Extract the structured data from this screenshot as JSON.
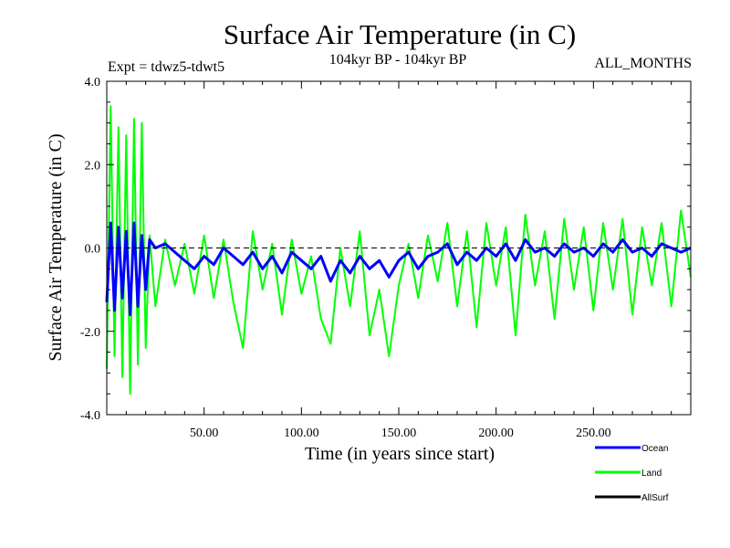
{
  "chart_data": {
    "type": "line",
    "title": "Surface Air Temperature (in C)",
    "subtitle": "104kyr BP - 104kyr BP",
    "left_note": "Expt = tdwz5-tdwt5",
    "right_note": "ALL_MONTHS",
    "xlabel": "Time (in years since start)",
    "ylabel": "Surface Air Temperature (in C)",
    "xlim": [
      0,
      300
    ],
    "ylim": [
      -4.0,
      4.0
    ],
    "x_ticks": [
      50,
      100,
      150,
      200,
      250
    ],
    "x_tick_labels": [
      "50.00",
      "100.00",
      "150.00",
      "200.00",
      "250.00"
    ],
    "y_ticks": [
      -4,
      -2,
      0,
      2,
      4
    ],
    "y_tick_labels": [
      "-4.0",
      "-2.0",
      "0.0",
      "2.0",
      "4.0"
    ],
    "zero_line": true,
    "grid": false,
    "legend_position": "bottom-right",
    "series": [
      {
        "name": "Land",
        "color": "#00ff00",
        "x": [
          0,
          2,
          4,
          6,
          8,
          10,
          12,
          14,
          16,
          18,
          20,
          22,
          25,
          30,
          35,
          40,
          45,
          50,
          55,
          60,
          65,
          70,
          75,
          80,
          85,
          90,
          95,
          100,
          105,
          110,
          115,
          120,
          125,
          130,
          135,
          140,
          145,
          150,
          155,
          160,
          165,
          170,
          175,
          180,
          185,
          190,
          195,
          200,
          205,
          210,
          215,
          220,
          225,
          230,
          235,
          240,
          245,
          250,
          255,
          260,
          265,
          270,
          275,
          280,
          285,
          290,
          295,
          300
        ],
        "values": [
          -2.9,
          3.4,
          -2.6,
          2.9,
          -3.1,
          2.7,
          -3.5,
          3.1,
          -2.8,
          3.0,
          -2.4,
          0.3,
          -1.4,
          0.2,
          -0.9,
          0.1,
          -1.1,
          0.3,
          -1.2,
          0.2,
          -1.3,
          -2.4,
          0.4,
          -1.0,
          0.1,
          -1.6,
          0.2,
          -1.1,
          -0.2,
          -1.7,
          -2.3,
          0.0,
          -1.4,
          0.4,
          -2.1,
          -1.0,
          -2.6,
          -0.9,
          0.1,
          -1.2,
          0.3,
          -0.8,
          0.6,
          -1.4,
          0.4,
          -1.9,
          0.6,
          -0.9,
          0.5,
          -2.1,
          0.8,
          -0.9,
          0.4,
          -1.7,
          0.7,
          -1.0,
          0.5,
          -1.5,
          0.6,
          -1.0,
          0.7,
          -1.6,
          0.5,
          -0.9,
          0.6,
          -1.4,
          0.9,
          -0.7
        ]
      },
      {
        "name": "Ocean",
        "color": "#0000ff",
        "x": [
          0,
          2,
          4,
          6,
          8,
          10,
          12,
          14,
          16,
          18,
          20,
          22,
          25,
          30,
          35,
          40,
          45,
          50,
          55,
          60,
          65,
          70,
          75,
          80,
          85,
          90,
          95,
          100,
          105,
          110,
          115,
          120,
          125,
          130,
          135,
          140,
          145,
          150,
          155,
          160,
          165,
          170,
          175,
          180,
          185,
          190,
          195,
          200,
          205,
          210,
          215,
          220,
          225,
          230,
          235,
          240,
          245,
          250,
          255,
          260,
          265,
          270,
          275,
          280,
          285,
          290,
          295,
          300
        ],
        "values": [
          -1.3,
          0.6,
          -1.5,
          0.5,
          -1.2,
          0.4,
          -1.6,
          0.6,
          -1.4,
          0.3,
          -1.0,
          0.2,
          0.0,
          0.1,
          -0.1,
          -0.3,
          -0.5,
          -0.2,
          -0.4,
          0.0,
          -0.2,
          -0.4,
          -0.1,
          -0.5,
          -0.2,
          -0.6,
          -0.1,
          -0.3,
          -0.5,
          -0.2,
          -0.8,
          -0.3,
          -0.6,
          -0.2,
          -0.5,
          -0.3,
          -0.7,
          -0.3,
          -0.1,
          -0.5,
          -0.2,
          -0.1,
          0.1,
          -0.4,
          -0.1,
          -0.3,
          0.0,
          -0.2,
          0.1,
          -0.3,
          0.2,
          -0.1,
          0.0,
          -0.2,
          0.1,
          -0.1,
          0.0,
          -0.2,
          0.1,
          -0.1,
          0.2,
          -0.1,
          0.0,
          -0.2,
          0.1,
          0.0,
          -0.1,
          0.0
        ]
      },
      {
        "name": "AllSurf",
        "color": "#000000",
        "x": [],
        "values": []
      }
    ]
  }
}
